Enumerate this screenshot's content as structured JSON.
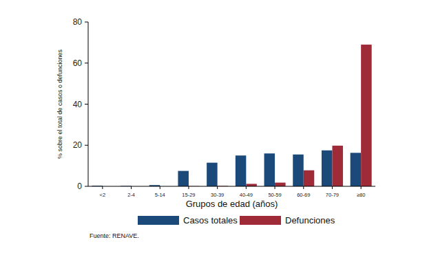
{
  "chart_data": {
    "type": "bar",
    "x_label": "Grupos de edad (años)",
    "y_label": "% sobre el total de casos o defunciones",
    "source": "Fuente: RENAVE.",
    "categories": [
      "<2",
      "2-4",
      "5-14",
      "15-29",
      "30-39",
      "40-49",
      "50-59",
      "60-69",
      "70-79",
      "≥80"
    ],
    "series": [
      {
        "name": "Casos totales",
        "color": "#1b4a7a",
        "values": [
          0.3,
          0.2,
          0.6,
          7.5,
          11.5,
          15,
          16,
          15.5,
          17.5,
          16.3
        ]
      },
      {
        "name": "Defunciones",
        "color": "#a02b38",
        "values": [
          0,
          0,
          0,
          0.1,
          0.2,
          1.2,
          1.8,
          7.8,
          19.8,
          69
        ]
      }
    ],
    "ylim": [
      0,
      80
    ],
    "yticks": [
      0,
      20,
      40,
      60,
      80
    ],
    "grid": false,
    "legend": "bottom"
  }
}
